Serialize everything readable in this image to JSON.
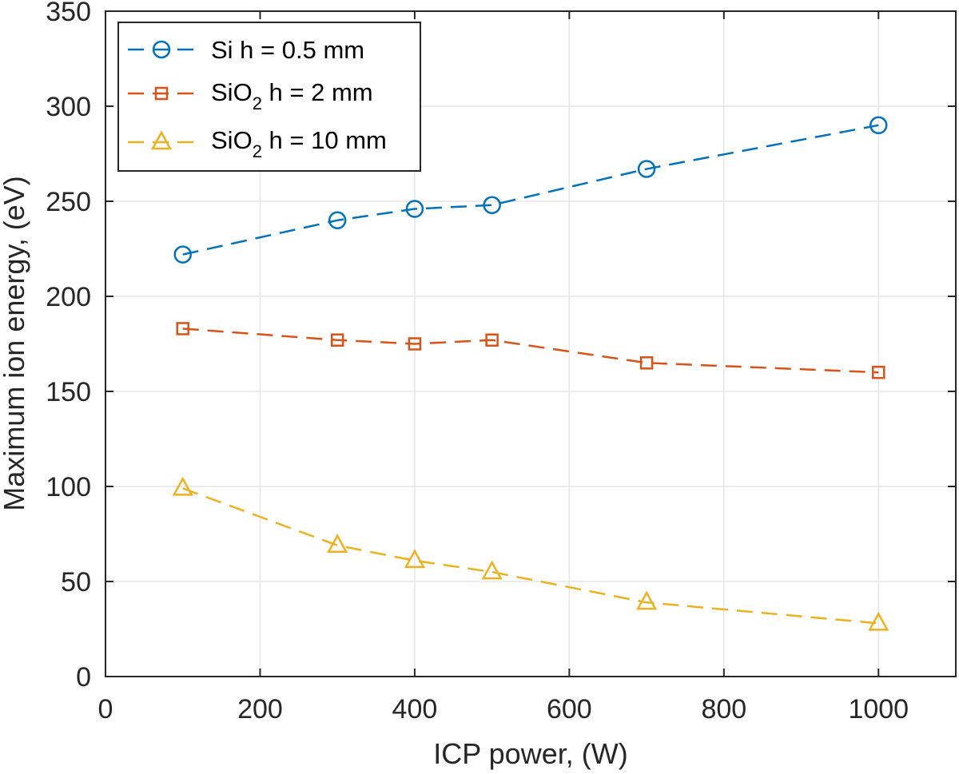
{
  "chart_data": {
    "type": "line",
    "xlabel": "ICP power, (W)",
    "ylabel": "Maximum ion energy, (eV)",
    "xlim": [
      0,
      1100
    ],
    "ylim": [
      0,
      350
    ],
    "xticks": [
      0,
      200,
      400,
      600,
      800,
      1000
    ],
    "yticks": [
      0,
      50,
      100,
      150,
      200,
      250,
      300,
      350
    ],
    "xtick_labels": [
      "0",
      "200",
      "400",
      "600",
      "800",
      "1000"
    ],
    "ytick_labels": [
      "0",
      "50",
      "100",
      "150",
      "200",
      "250",
      "300",
      "350"
    ],
    "grid": true,
    "legend_position": "top-left",
    "x": [
      100,
      300,
      400,
      500,
      700,
      1000
    ],
    "series": [
      {
        "name": "Si h = 0.5 mm",
        "label_main": "Si h = 0.5 mm",
        "label_sub": "",
        "label_rest": "",
        "marker": "circle",
        "color": "#0072BD",
        "values": [
          222,
          240,
          246,
          248,
          267,
          290
        ]
      },
      {
        "name": "SiO2 h = 2 mm",
        "label_main": "SiO",
        "label_sub": "2",
        "label_rest": " h = 2 mm",
        "marker": "square",
        "color": "#D95319",
        "values": [
          183,
          177,
          175,
          177,
          165,
          160
        ]
      },
      {
        "name": "SiO2 h = 10 mm",
        "label_main": "SiO",
        "label_sub": "2",
        "label_rest": " h = 10 mm",
        "marker": "triangle",
        "color": "#EDB120",
        "values": [
          99,
          69,
          61,
          55,
          39,
          28
        ]
      }
    ]
  }
}
